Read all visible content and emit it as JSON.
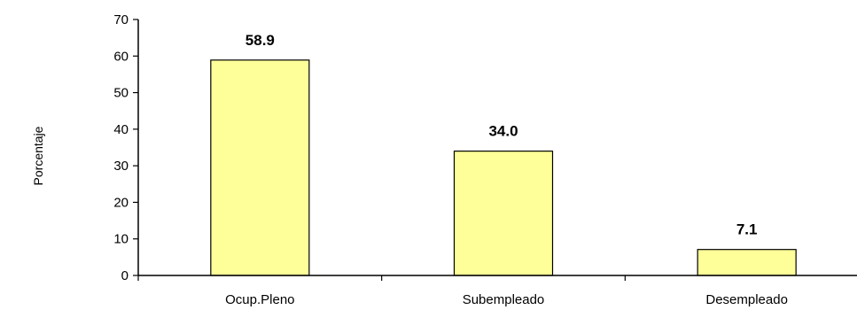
{
  "chart_data": {
    "type": "bar",
    "title": "",
    "xlabel": "",
    "ylabel": "Porcentaje",
    "categories": [
      "Ocup.Pleno",
      "Subempleado",
      "Desempleado"
    ],
    "values": [
      58.9,
      34.0,
      7.1
    ],
    "data_labels": [
      "58.9",
      "34.0",
      "7.1"
    ],
    "ylim": [
      0,
      70
    ],
    "yticks": [
      0,
      10,
      20,
      30,
      40,
      50,
      60,
      70
    ],
    "grid": false,
    "legend": "none",
    "colors": {
      "bar_fill": "#ffff99",
      "bar_stroke": "#000000",
      "axis": "#000000"
    }
  }
}
